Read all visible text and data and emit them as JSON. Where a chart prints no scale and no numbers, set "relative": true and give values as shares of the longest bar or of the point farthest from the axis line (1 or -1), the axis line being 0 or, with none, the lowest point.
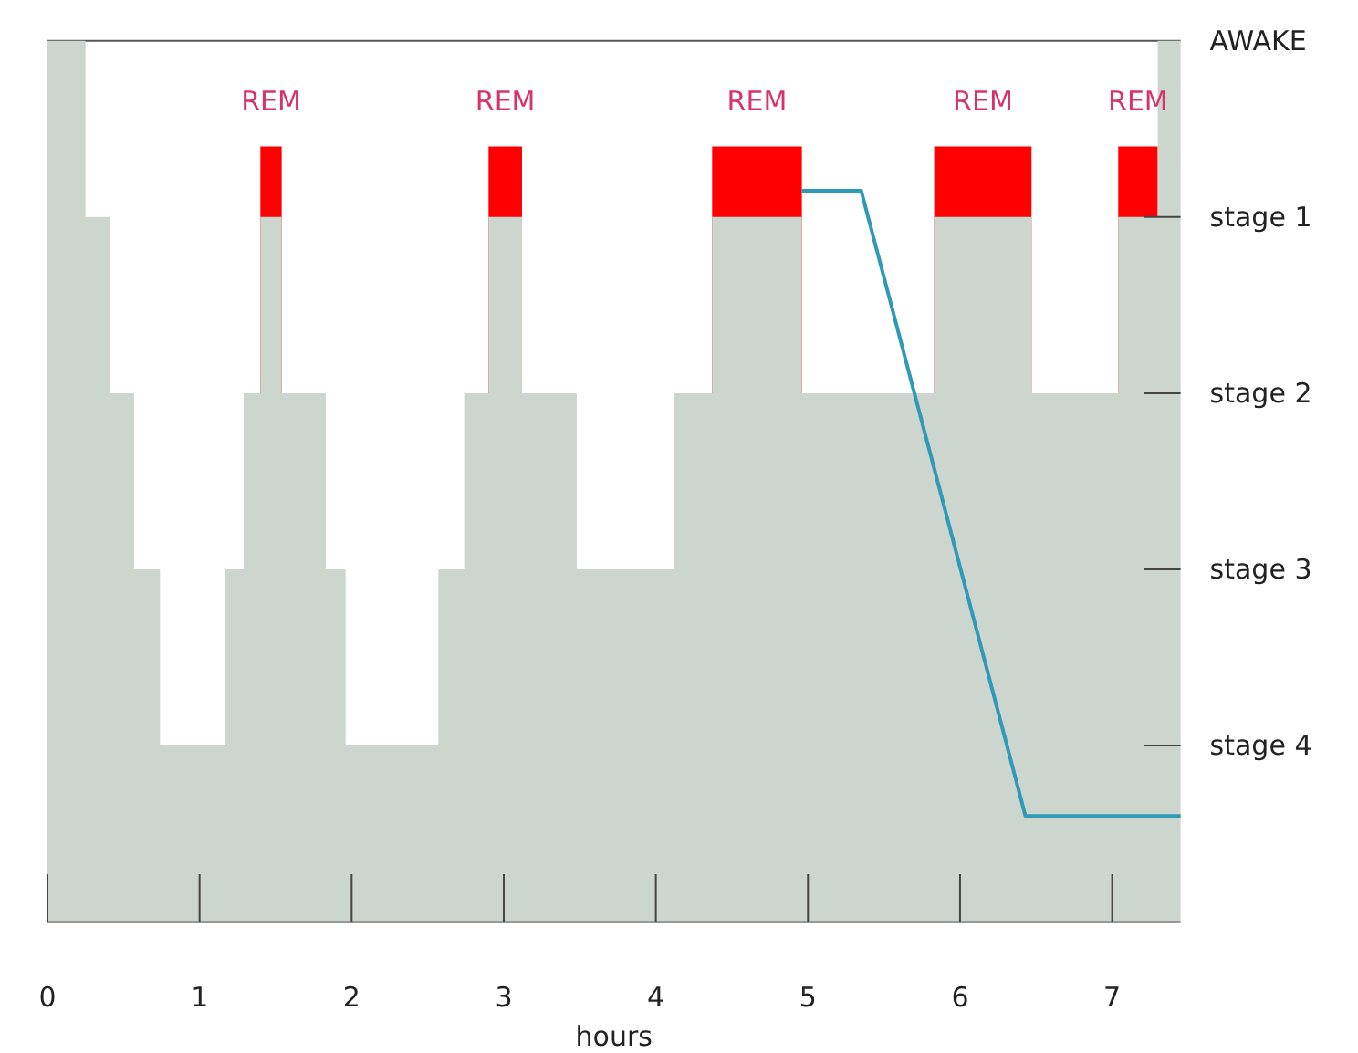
{
  "chart_data": {
    "type": "area",
    "relative": true,
    "xlabel": "hours",
    "xlim": [
      0,
      7.45
    ],
    "xticks": [
      0,
      1,
      2,
      3,
      4,
      5,
      6,
      7
    ],
    "series": [
      {
        "color": "#ff0000",
        "x": [
          1.4,
          1.54
        ],
        "values": [
          0.88,
          0.88
        ]
      },
      {
        "color": "#ff0000",
        "x": [
          2.9,
          3.12
        ],
        "values": [
          0.88,
          0.88
        ]
      },
      {
        "color": "#ff0000",
        "x": [
          4.37,
          4.96
        ],
        "values": [
          0.88,
          0.88
        ]
      },
      {
        "color": "#ff0000",
        "x": [
          5.83,
          6.47
        ],
        "values": [
          0.88,
          0.88
        ]
      },
      {
        "color": "#ff0000",
        "x": [
          7.04,
          7.3
        ],
        "values": [
          0.88,
          0.88
        ]
      },
      {
        "color": "#cdd5cf",
        "x": [
          0,
          0.25,
          0.25,
          0.41,
          0.41,
          0.57,
          0.57,
          0.74,
          0.74,
          1.17,
          1.17,
          1.29,
          1.29,
          1.4,
          1.4,
          1.54,
          1.54,
          1.83,
          1.83,
          1.96,
          1.96,
          2.57,
          2.57,
          2.74,
          2.74,
          2.9,
          2.9,
          3.12,
          3.12,
          3.48,
          3.48,
          4.12,
          4.12,
          4.37,
          4.37,
          4.96,
          4.96,
          5.83,
          5.83,
          6.47,
          6.47,
          7.04,
          7.04,
          7.3,
          7.3,
          7.45
        ],
        "values": [
          1,
          1,
          0.8,
          0.8,
          0.6,
          0.6,
          0.4,
          0.4,
          0.2,
          0.2,
          0.4,
          0.4,
          0.6,
          0.6,
          0.8,
          0.8,
          0.6,
          0.6,
          0.4,
          0.4,
          0.2,
          0.2,
          0.4,
          0.4,
          0.6,
          0.6,
          0.8,
          0.8,
          0.6,
          0.6,
          0.4,
          0.4,
          0.6,
          0.6,
          0.8,
          0.8,
          0.6,
          0.6,
          0.8,
          0.8,
          0.6,
          0.6,
          0.8,
          0.8,
          1,
          1
        ]
      },
      {
        "type": "line",
        "color": "#2e9ab8",
        "x": [
          4.96,
          5.35,
          6.43,
          7.45
        ],
        "values": [
          0.83,
          0.83,
          0.12,
          0.12
        ]
      }
    ],
    "annotations": [
      "REM",
      "REM",
      "REM",
      "REM",
      "REM",
      "AWAKE",
      "stage 1",
      "stage 2",
      "stage 3",
      "stage 4"
    ],
    "grid": false
  }
}
